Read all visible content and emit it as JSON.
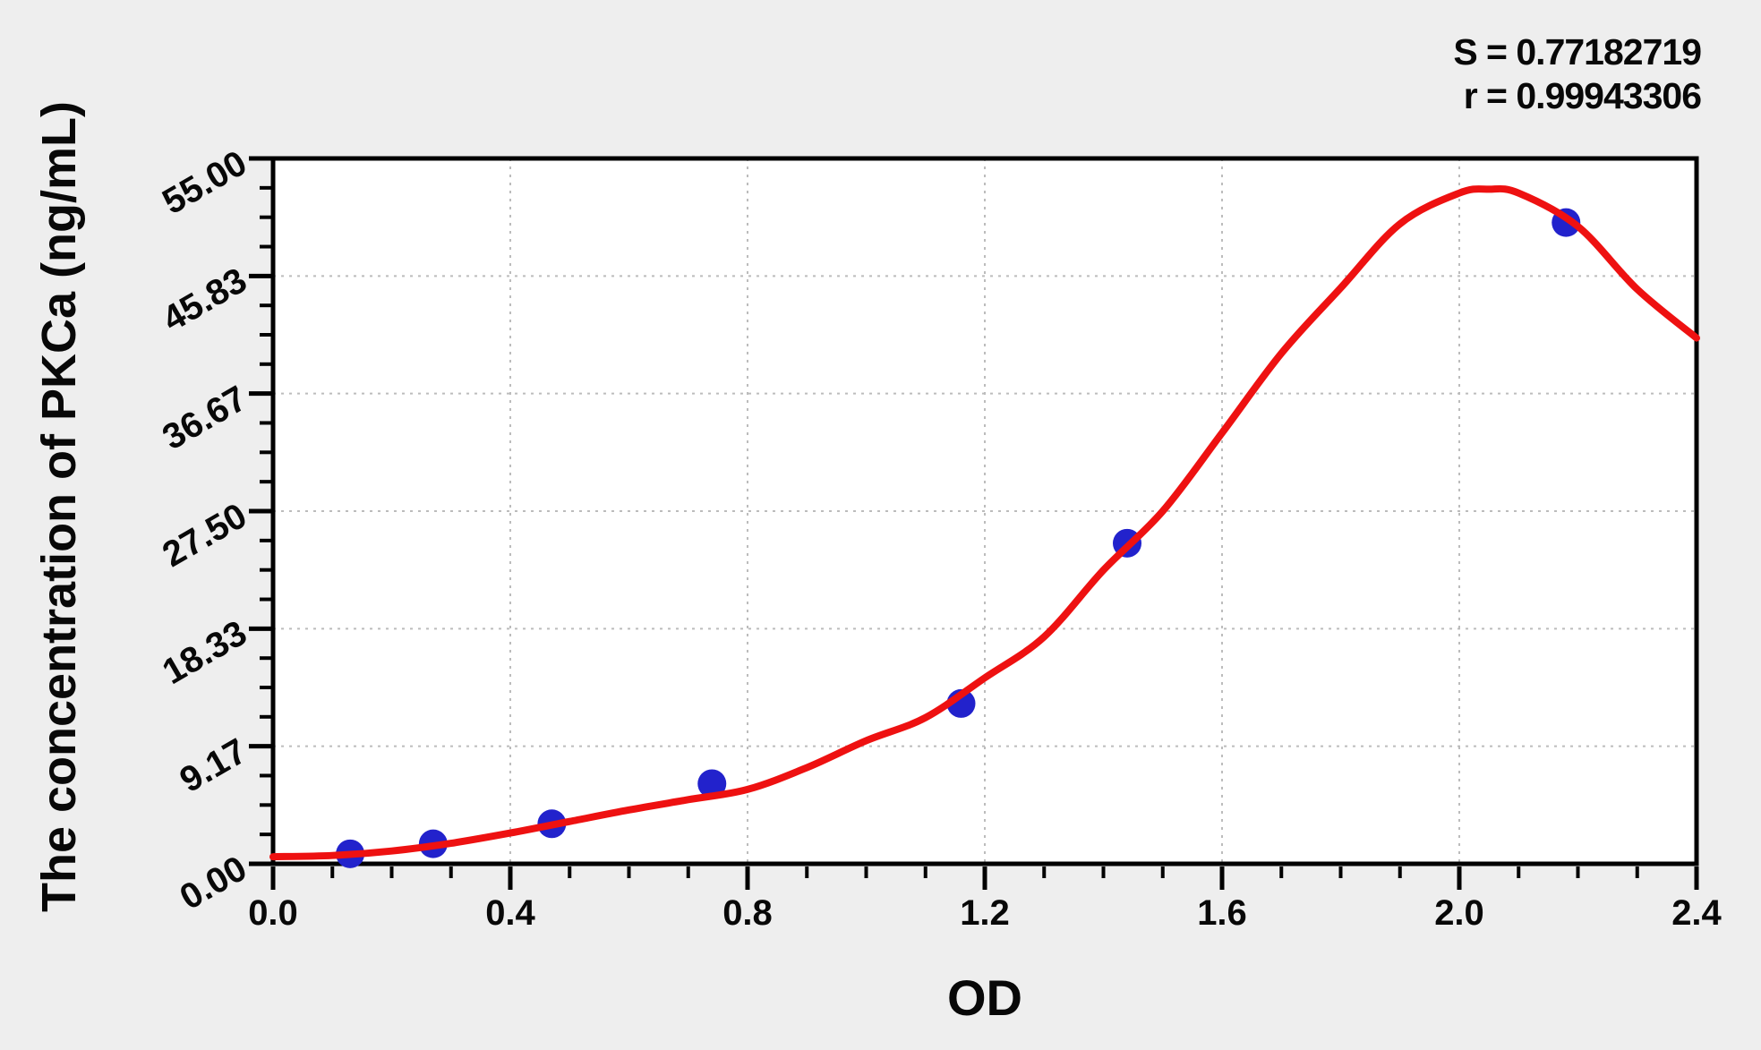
{
  "stats": {
    "s_line": "S = 0.77182719",
    "r_line": "r = 0.99943306"
  },
  "chart_data": {
    "type": "scatter",
    "title": "",
    "xlabel": "OD",
    "ylabel": "The concentration of PKCa (ng/mL)",
    "xlim": [
      0.0,
      2.4
    ],
    "ylim": [
      0.0,
      55.0
    ],
    "grid": true,
    "legend": "none",
    "x_major_ticks": [
      0.0,
      0.4,
      0.8,
      1.2,
      1.6,
      2.0,
      2.4
    ],
    "x_tick_labels": [
      "0.0",
      "0.4",
      "0.8",
      "1.2",
      "1.6",
      "2.0",
      "2.4"
    ],
    "x_minor_tick_step": 0.1,
    "y_major_ticks": [
      0.0,
      9.17,
      18.33,
      27.5,
      36.67,
      45.83,
      55.0
    ],
    "y_tick_labels": [
      "0.00",
      "9.17",
      "18.33",
      "27.50",
      "36.67",
      "45.83",
      "55.00"
    ],
    "y_minor_divisions": 4,
    "series": [
      {
        "name": "standard-points",
        "type": "scatter",
        "points": [
          {
            "od": 0.13,
            "conc": 0.78
          },
          {
            "od": 0.27,
            "conc": 1.56
          },
          {
            "od": 0.47,
            "conc": 3.12
          },
          {
            "od": 0.74,
            "conc": 6.25
          },
          {
            "od": 1.16,
            "conc": 12.5
          },
          {
            "od": 1.44,
            "conc": 25.0
          },
          {
            "od": 2.18,
            "conc": 50.0
          }
        ]
      },
      {
        "name": "fitted-curve",
        "type": "line",
        "points": [
          [
            0.0,
            0.55
          ],
          [
            0.1,
            0.65
          ],
          [
            0.2,
            1.0
          ],
          [
            0.3,
            1.6
          ],
          [
            0.4,
            2.4
          ],
          [
            0.5,
            3.3
          ],
          [
            0.6,
            4.2
          ],
          [
            0.7,
            5.0
          ],
          [
            0.8,
            5.8
          ],
          [
            0.9,
            7.5
          ],
          [
            1.0,
            9.6
          ],
          [
            1.1,
            11.4
          ],
          [
            1.2,
            14.5
          ],
          [
            1.3,
            17.7
          ],
          [
            1.4,
            22.9
          ],
          [
            1.5,
            27.5
          ],
          [
            1.6,
            33.6
          ],
          [
            1.7,
            39.8
          ],
          [
            1.8,
            44.9
          ],
          [
            1.9,
            49.9
          ],
          [
            2.0,
            52.3
          ],
          [
            2.05,
            52.6
          ],
          [
            2.1,
            52.3
          ],
          [
            2.2,
            49.7
          ],
          [
            2.3,
            44.8
          ],
          [
            2.4,
            41.0
          ]
        ]
      }
    ],
    "colors": {
      "curve": "#ee1111",
      "point": "#2222cc",
      "grid": "#bcbcbc",
      "axis": "#000000",
      "plot_background": "#ffffff",
      "page_background": "#eeeeee"
    }
  }
}
